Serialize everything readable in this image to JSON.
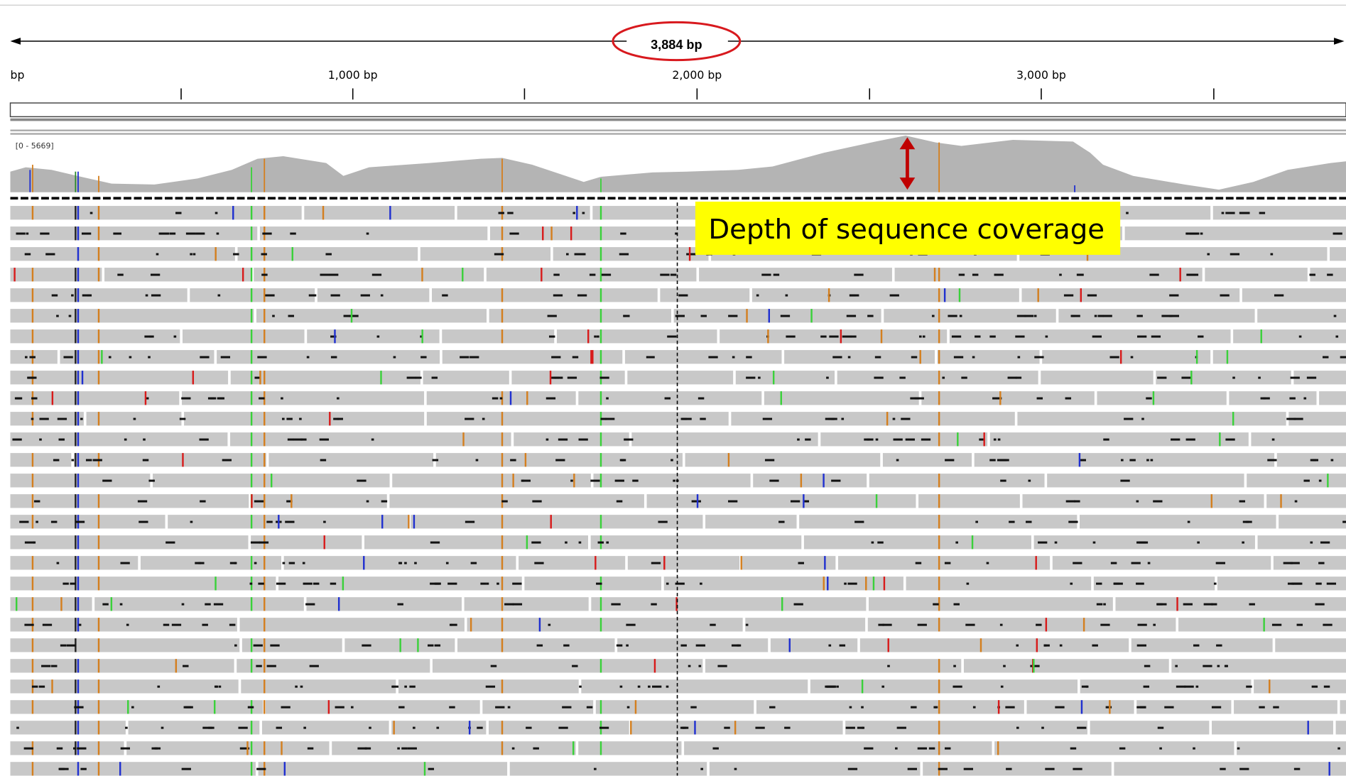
{
  "ruler": {
    "span": "3,884 bp",
    "labels": [
      "bp",
      "1,000 bp",
      "2,000 bp",
      "3,000 bp"
    ]
  },
  "coverage": {
    "range": "[0 - 5669]"
  },
  "annotation": "Depth of sequence coverage"
}
